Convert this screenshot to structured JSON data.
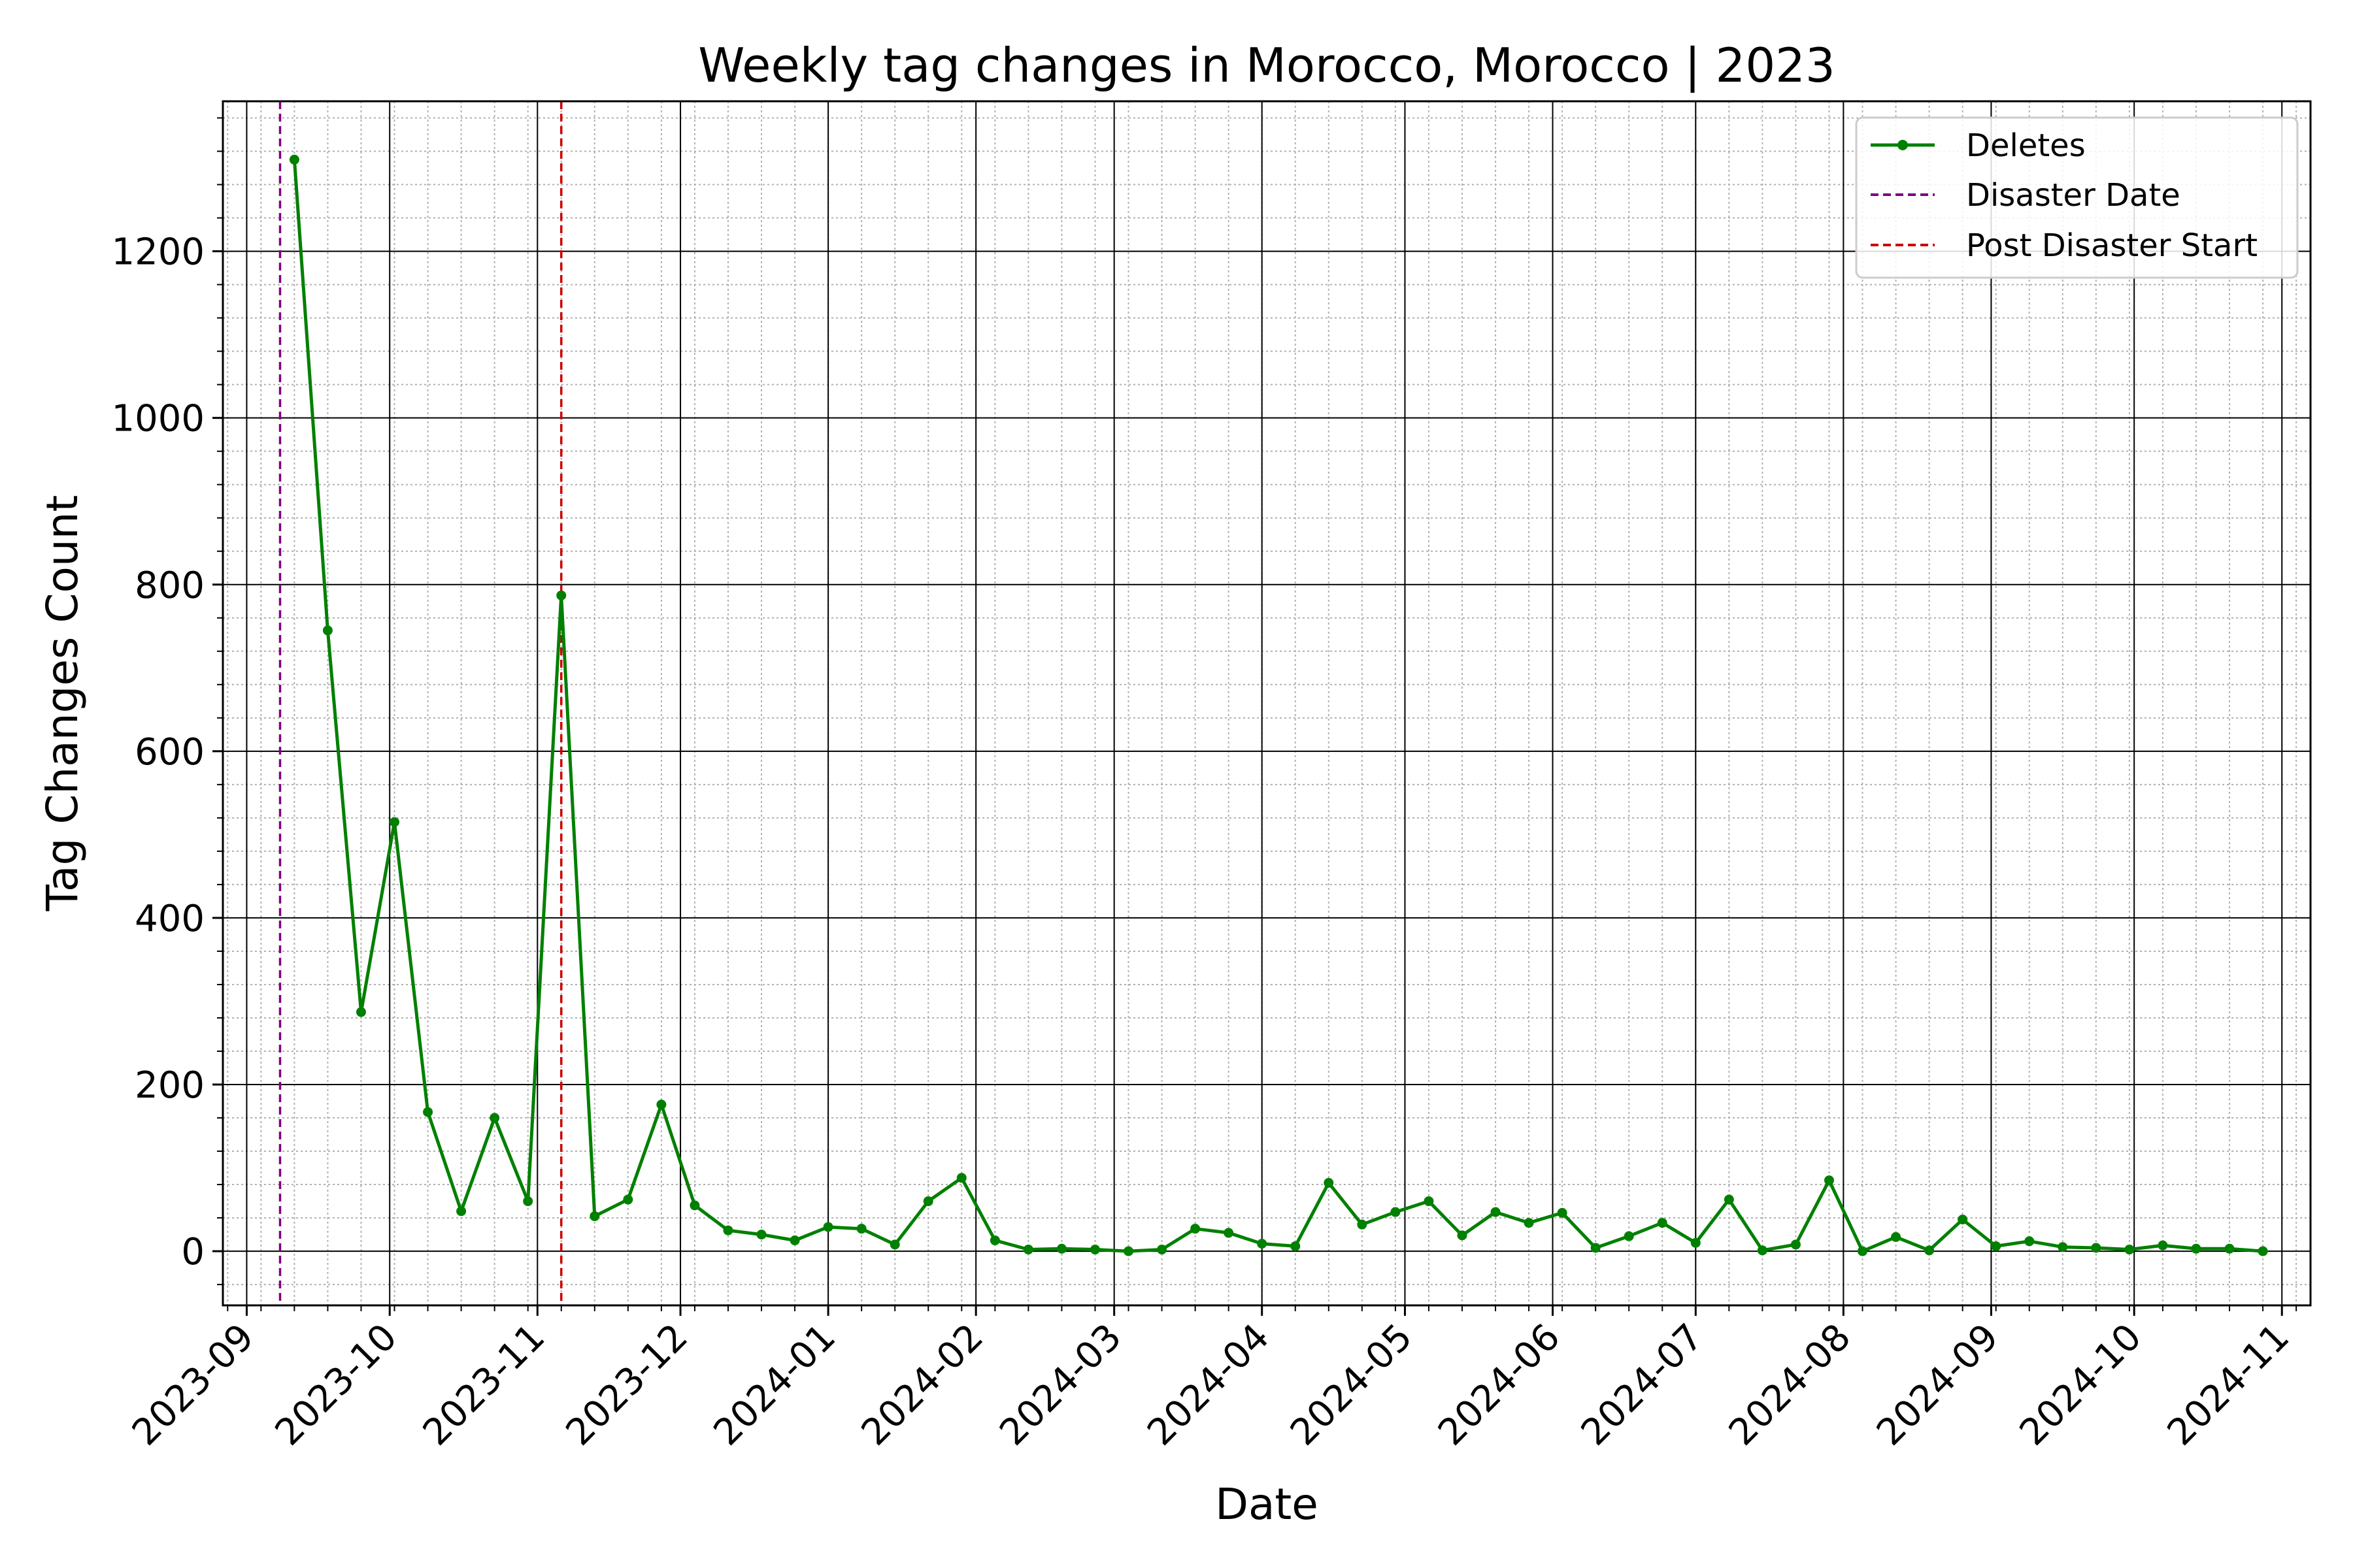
{
  "chart_data": {
    "type": "line",
    "title": "Weekly tag changes in Morocco, Morocco | 2023",
    "xlabel": "Date",
    "ylabel": "Tag Changes Count",
    "xlim": [
      "2023-08-27",
      "2024-11-07"
    ],
    "ylim": [
      -65,
      1380
    ],
    "y_ticks": [
      0,
      200,
      400,
      600,
      800,
      1000,
      1200
    ],
    "x_ticks": [
      "2023-09-01",
      "2023-10-01",
      "2023-11-01",
      "2023-12-01",
      "2024-01-01",
      "2024-02-01",
      "2024-03-01",
      "2024-04-01",
      "2024-05-01",
      "2024-06-01",
      "2024-07-01",
      "2024-08-01",
      "2024-09-01",
      "2024-10-01",
      "2024-11-01"
    ],
    "x_tick_labels": [
      "2023-09",
      "2023-10",
      "2023-11",
      "2023-12",
      "2024-01",
      "2024-02",
      "2024-03",
      "2024-04",
      "2024-05",
      "2024-06",
      "2024-07",
      "2024-08",
      "2024-09",
      "2024-10",
      "2024-11"
    ],
    "grid": true,
    "legend_position": "top-right",
    "series": [
      {
        "name": "Deletes",
        "color": "#008000",
        "x": [
          "2023-09-11",
          "2023-09-18",
          "2023-09-25",
          "2023-10-02",
          "2023-10-09",
          "2023-10-16",
          "2023-10-23",
          "2023-10-30",
          "2023-11-06",
          "2023-11-13",
          "2023-11-20",
          "2023-11-27",
          "2023-12-04",
          "2023-12-11",
          "2023-12-18",
          "2023-12-25",
          "2024-01-01",
          "2024-01-08",
          "2024-01-15",
          "2024-01-22",
          "2024-01-29",
          "2024-02-05",
          "2024-02-12",
          "2024-02-19",
          "2024-02-26",
          "2024-03-04",
          "2024-03-11",
          "2024-03-18",
          "2024-03-25",
          "2024-04-01",
          "2024-04-08",
          "2024-04-15",
          "2024-04-22",
          "2024-04-29",
          "2024-05-06",
          "2024-05-13",
          "2024-05-20",
          "2024-05-27",
          "2024-06-03",
          "2024-06-10",
          "2024-06-17",
          "2024-06-24",
          "2024-07-01",
          "2024-07-08",
          "2024-07-15",
          "2024-07-22",
          "2024-07-29",
          "2024-08-05",
          "2024-08-12",
          "2024-08-19",
          "2024-08-26",
          "2024-09-02",
          "2024-09-09",
          "2024-09-16",
          "2024-09-23",
          "2024-09-30",
          "2024-10-07",
          "2024-10-14",
          "2024-10-21",
          "2024-10-28"
        ],
        "values": [
          1310,
          745,
          287,
          515,
          167,
          48,
          160,
          60,
          787,
          42,
          62,
          176,
          55,
          25,
          20,
          13,
          29,
          27,
          8,
          60,
          88,
          13,
          2,
          3,
          2,
          0,
          2,
          27,
          22,
          9,
          6,
          82,
          32,
          47,
          60,
          19,
          47,
          34,
          46,
          4,
          18,
          34,
          10,
          62,
          1,
          8,
          85,
          0,
          17,
          1,
          38,
          6,
          12,
          5,
          4,
          2,
          7,
          3,
          3,
          0
        ]
      }
    ],
    "vlines": [
      {
        "name": "Disaster Date",
        "x": "2023-09-08",
        "color": "#800080"
      },
      {
        "name": "Post Disaster Start",
        "x": "2023-11-06",
        "color": "#cc0000"
      }
    ]
  }
}
